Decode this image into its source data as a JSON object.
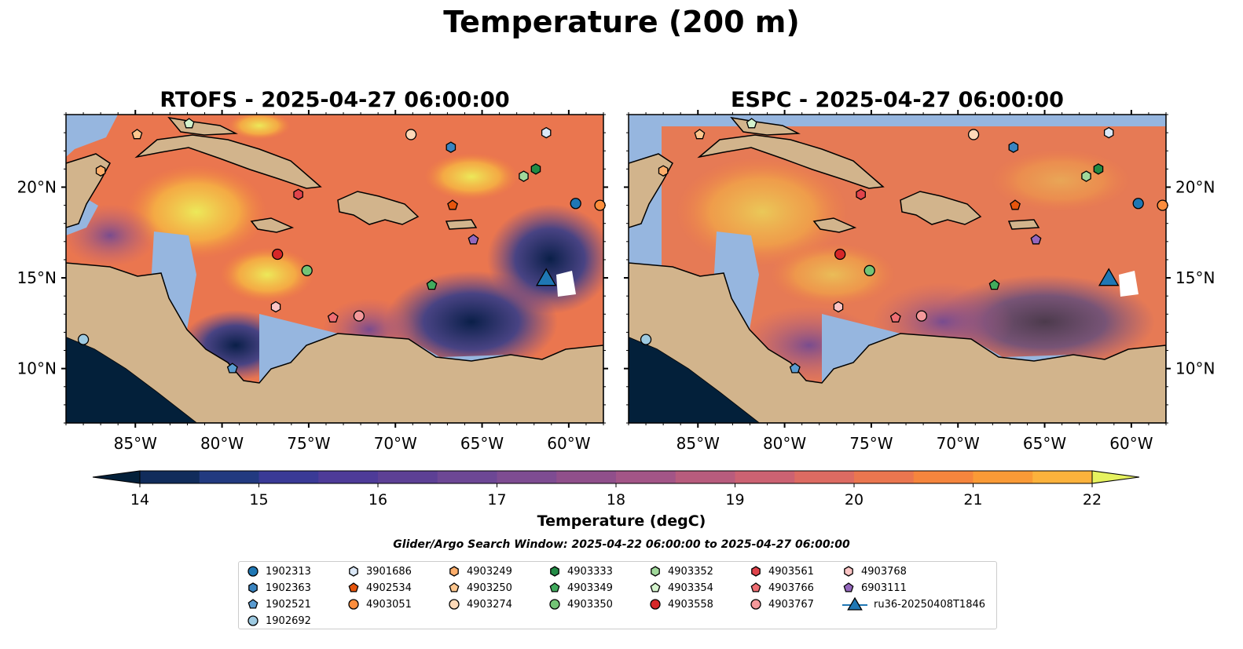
{
  "figure": {
    "title": "Temperature (200 m)",
    "colorbar_label": "Temperature (degC)",
    "search_window": "Glider/Argo Search Window: 2025-04-22 06:00:00 to 2025-04-27 06:00:00"
  },
  "panels": [
    {
      "title": "RTOFS - 2025-04-27 06:00:00"
    },
    {
      "title": "ESPC - 2025-04-27 06:00:00"
    }
  ],
  "axes": {
    "lon_ticks": [
      "85°W",
      "80°W",
      "75°W",
      "70°W",
      "65°W",
      "60°W"
    ],
    "lat_ticks": [
      "20°N",
      "15°N",
      "10°N"
    ],
    "lon_range": [
      -89,
      -58
    ],
    "lat_range": [
      7,
      24
    ]
  },
  "colorbar": {
    "min": 14,
    "max": 22,
    "step": 0.5,
    "ticks": [
      "14",
      "15",
      "16",
      "17",
      "18",
      "19",
      "20",
      "21",
      "22"
    ],
    "colors": [
      "#03203a",
      "#112c5b",
      "#223a80",
      "#3a3a96",
      "#4e3b98",
      "#5d4095",
      "#6d4795",
      "#7e4c92",
      "#904f8b",
      "#a35587",
      "#b85c7d",
      "#cc6272",
      "#dd6b62",
      "#ea764f",
      "#f5853d",
      "#fa9a36",
      "#fcb23c",
      "#f5cb4a",
      "#f0e35a",
      "#e6f25f"
    ]
  },
  "legend": [
    {
      "id": "1902313",
      "marker": "circle",
      "color": "#1f77b4"
    },
    {
      "id": "1902363",
      "marker": "hexagon",
      "color": "#3a84c0"
    },
    {
      "id": "1902521",
      "marker": "pentagon",
      "color": "#5a9bd0"
    },
    {
      "id": "1902692",
      "marker": "circle",
      "color": "#9ecae1"
    },
    {
      "id": "3901686",
      "marker": "hexagon",
      "color": "#dbe8f7"
    },
    {
      "id": "4902534",
      "marker": "pentagon",
      "color": "#e6550d"
    },
    {
      "id": "4903051",
      "marker": "circle",
      "color": "#fd8d3c"
    },
    {
      "id": "4903249",
      "marker": "hexagon",
      "color": "#fdae6b"
    },
    {
      "id": "4903250",
      "marker": "pentagon",
      "color": "#fdc68e"
    },
    {
      "id": "4903274",
      "marker": "circle",
      "color": "#fdd9b8"
    },
    {
      "id": "4903333",
      "marker": "hexagon",
      "color": "#238b45"
    },
    {
      "id": "4903349",
      "marker": "pentagon",
      "color": "#41ab5d"
    },
    {
      "id": "4903350",
      "marker": "circle",
      "color": "#74c476"
    },
    {
      "id": "4903352",
      "marker": "hexagon",
      "color": "#a1d99b"
    },
    {
      "id": "4903354",
      "marker": "pentagon",
      "color": "#d4f3cd"
    },
    {
      "id": "4903558",
      "marker": "circle",
      "color": "#d62728"
    },
    {
      "id": "4903561",
      "marker": "hexagon",
      "color": "#e0434b"
    },
    {
      "id": "4903766",
      "marker": "pentagon",
      "color": "#ee6e73"
    },
    {
      "id": "4903767",
      "marker": "circle",
      "color": "#f4999b"
    },
    {
      "id": "4903768",
      "marker": "hexagon",
      "color": "#fbc4c4"
    },
    {
      "id": "6903111",
      "marker": "pentagon",
      "color": "#9467bd"
    },
    {
      "id": "ru36-20250408T1846",
      "marker": "triangle",
      "color": "#1f77b4"
    }
  ],
  "floats": [
    {
      "id": "4903274",
      "lon": -69.1,
      "lat": 22.9,
      "marker": "circle",
      "color": "#fdd9b8"
    },
    {
      "id": "4903250",
      "lon": -84.9,
      "lat": 22.9,
      "marker": "pentagon",
      "color": "#fdc68e"
    },
    {
      "id": "4903354",
      "lon": -81.9,
      "lat": 23.5,
      "marker": "pentagon",
      "color": "#d4f3cd"
    },
    {
      "id": "1902363",
      "lon": -66.8,
      "lat": 22.2,
      "marker": "hexagon",
      "color": "#3a84c0"
    },
    {
      "id": "3901686",
      "lon": -61.3,
      "lat": 23.0,
      "marker": "hexagon",
      "color": "#dbe8f7"
    },
    {
      "id": "4903249",
      "lon": -87.0,
      "lat": 20.9,
      "marker": "hexagon",
      "color": "#fdae6b"
    },
    {
      "id": "4903333",
      "lon": -61.9,
      "lat": 21.0,
      "marker": "hexagon",
      "color": "#238b45"
    },
    {
      "id": "4903352",
      "lon": -62.6,
      "lat": 20.6,
      "marker": "hexagon",
      "color": "#a1d99b"
    },
    {
      "id": "4903561",
      "lon": -75.6,
      "lat": 19.6,
      "marker": "hexagon",
      "color": "#e0434b"
    },
    {
      "id": "4902534",
      "lon": -66.7,
      "lat": 19.0,
      "marker": "pentagon",
      "color": "#e6550d"
    },
    {
      "id": "1902313",
      "lon": -59.6,
      "lat": 19.1,
      "marker": "circle",
      "color": "#1f77b4"
    },
    {
      "id": "4903051",
      "lon": -58.2,
      "lat": 19.0,
      "marker": "circle",
      "color": "#fd8d3c"
    },
    {
      "id": "6903111",
      "lon": -65.5,
      "lat": 17.1,
      "marker": "pentagon",
      "color": "#9467bd"
    },
    {
      "id": "4903558",
      "lon": -76.8,
      "lat": 16.3,
      "marker": "circle",
      "color": "#d62728"
    },
    {
      "id": "4903350",
      "lon": -75.1,
      "lat": 15.4,
      "marker": "circle",
      "color": "#74c476"
    },
    {
      "id": "4903349",
      "lon": -67.9,
      "lat": 14.6,
      "marker": "pentagon",
      "color": "#41ab5d"
    },
    {
      "id": "4903768",
      "lon": -76.9,
      "lat": 13.4,
      "marker": "hexagon",
      "color": "#fbc4c4"
    },
    {
      "id": "4903766",
      "lon": -73.6,
      "lat": 12.8,
      "marker": "pentagon",
      "color": "#ee6e73"
    },
    {
      "id": "4903767",
      "lon": -72.1,
      "lat": 12.9,
      "marker": "circle",
      "color": "#f4999b"
    },
    {
      "id": "1902692",
      "lon": -88.0,
      "lat": 11.6,
      "marker": "circle",
      "color": "#9ecae1"
    },
    {
      "id": "1902521",
      "lon": -79.4,
      "lat": 10.0,
      "marker": "pentagon",
      "color": "#5a9bd0"
    }
  ],
  "glider": {
    "id": "ru36-20250408T1846",
    "lon": -61.3,
    "lat": 14.8,
    "marker": "triangle",
    "color": "#1f77b4"
  }
}
